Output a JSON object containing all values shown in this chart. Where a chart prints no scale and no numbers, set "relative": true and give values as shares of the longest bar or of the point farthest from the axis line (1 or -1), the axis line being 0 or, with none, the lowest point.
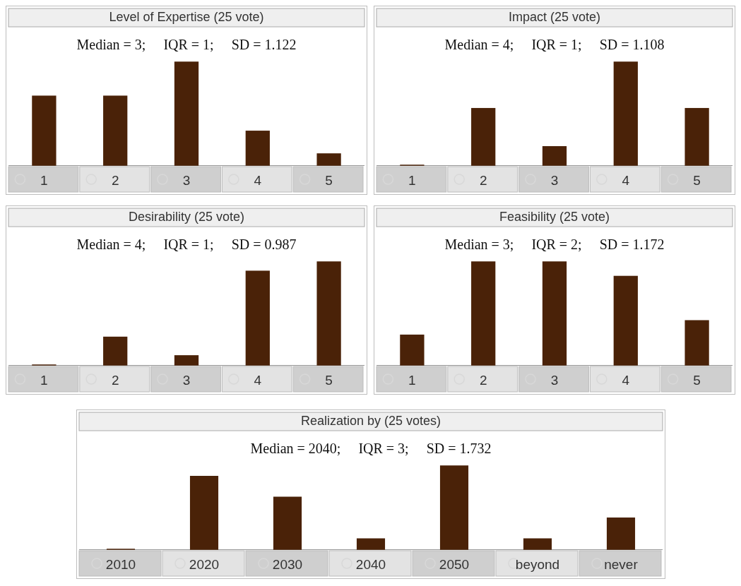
{
  "chart_data": [
    {
      "type": "bar",
      "title": "Level of Expertise (25 vote)",
      "subtitle": "Median = 3;     IQR = 1;     SD = 1.122",
      "categories": [
        "1",
        "2",
        "3",
        "4",
        "5"
      ],
      "relative": true,
      "color": "#4a2208",
      "values": [
        0.67,
        0.67,
        1,
        0.33,
        0.11
      ]
    },
    {
      "type": "bar",
      "title": "Impact (25 vote)",
      "subtitle": "Median = 4;     IQR = 1;     SD = 1.108",
      "categories": [
        "1",
        "2",
        "3",
        "4",
        "5"
      ],
      "relative": true,
      "color": "#4a2208",
      "values": [
        0,
        0.55,
        0.18,
        1,
        0.55
      ]
    },
    {
      "type": "bar",
      "title": "Desirability (25 vote)",
      "subtitle": "Median = 4;     IQR = 1;     SD = 0.987",
      "categories": [
        "1",
        "2",
        "3",
        "4",
        "5"
      ],
      "relative": true,
      "color": "#4a2208",
      "values": [
        0,
        0.27,
        0.09,
        0.91,
        1
      ]
    },
    {
      "type": "bar",
      "title": "Feasibility (25 vote)",
      "subtitle": "Median = 3;     IQR = 2;     SD = 1.172",
      "categories": [
        "1",
        "2",
        "3",
        "4",
        "5"
      ],
      "relative": true,
      "color": "#4a2208",
      "values": [
        0.29,
        1,
        1,
        0.86,
        0.43
      ]
    },
    {
      "type": "bar",
      "title": "Realization by (25 votes)",
      "subtitle": "Median = 2040;     IQR = 3;     SD = 1.732",
      "categories": [
        "2010",
        "2020",
        "2030",
        "2040",
        "2050",
        "beyond",
        "never"
      ],
      "relative": true,
      "color": "#4a2208",
      "values": [
        0,
        0.875,
        0.625,
        0.125,
        1,
        0.125,
        0.375
      ]
    }
  ]
}
